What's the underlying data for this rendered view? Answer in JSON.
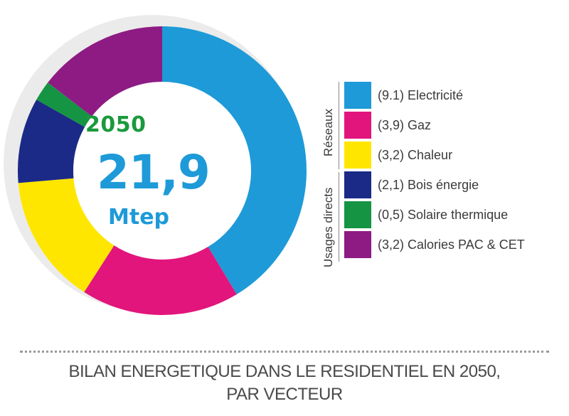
{
  "chart_data": {
    "type": "pie",
    "center": {
      "year": "2050",
      "value": "21,9",
      "unit": "Mtep"
    },
    "slices": [
      {
        "value": 9.1,
        "display": "(9.1)",
        "label": "Electricité",
        "color": "#1e9ad8",
        "group": "reseaux"
      },
      {
        "value": 3.9,
        "display": "(3,9)",
        "label": "Gaz",
        "color": "#e2157c",
        "group": "reseaux"
      },
      {
        "value": 3.2,
        "display": "(3,2)",
        "label": "Chaleur",
        "color": "#ffe600",
        "group": "reseaux"
      },
      {
        "value": 2.1,
        "display": "(2,1)",
        "label": "Bois énergie",
        "color": "#1b2a86",
        "group": "usages"
      },
      {
        "value": 0.5,
        "display": "(0,5)",
        "label": "Solaire thermique",
        "color": "#159444",
        "group": "usages"
      },
      {
        "value": 3.2,
        "display": "(3,2)",
        "label": "Calories PAC & CET",
        "color": "#8e1b83",
        "group": "usages"
      }
    ],
    "groups": {
      "reseaux": "Réseaux",
      "usages": "Usages directs"
    },
    "caption": [
      "BILAN ENERGETIQUE DANS LE RESIDENTIEL EN 2050,",
      "PAR VECTEUR"
    ]
  }
}
